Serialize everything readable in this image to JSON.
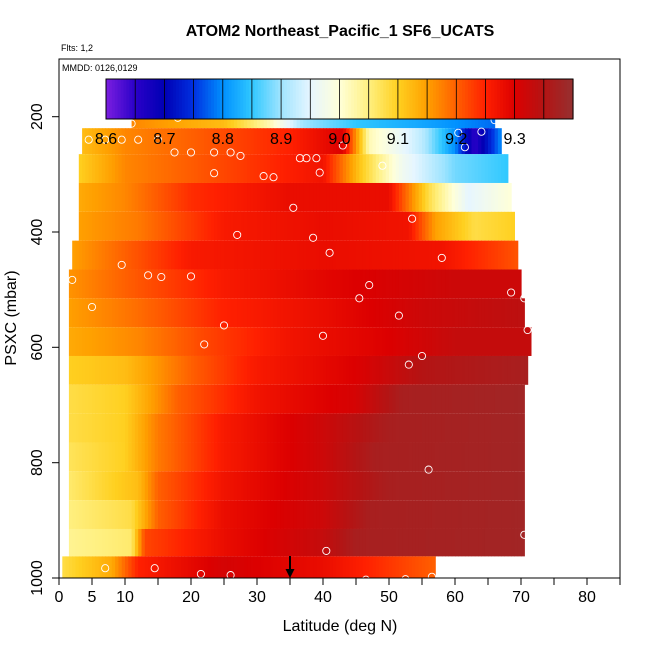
{
  "chart_data": {
    "type": "heatmap",
    "title": "ATOM2 Northeast_Pacific_1 SF6_UCATS",
    "flights_note": "Flts: 1,2",
    "dates_note": "MMDD: 0126,0129",
    "xlabel": "Latitude (deg N)",
    "ylabel": "PSXC (mbar)",
    "xlim": [
      0,
      85
    ],
    "ylim": [
      1000,
      100
    ],
    "x_ticks": [
      0,
      5,
      10,
      20,
      30,
      40,
      50,
      60,
      70,
      80
    ],
    "x_tick_labels": [
      "0",
      "5",
      "10",
      "20",
      "30",
      "40",
      "50",
      "60",
      "70",
      "80"
    ],
    "x_minor_ticks": [
      15,
      25,
      35,
      45,
      55,
      65,
      75,
      85
    ],
    "y_ticks": [
      200,
      400,
      600,
      800,
      1000
    ],
    "y_tick_labels": [
      "200",
      "400",
      "600",
      "800",
      "1000"
    ],
    "colorbar": {
      "range": [
        8.6,
        9.4
      ],
      "ticks": [
        8.6,
        8.7,
        8.8,
        8.9,
        9.0,
        9.1,
        9.2,
        9.3
      ],
      "tick_labels": [
        "8.6",
        "8.7",
        "8.8",
        "8.9",
        "9.0",
        "9.1",
        "9.2",
        "9.3"
      ],
      "colors": [
        "#7b1fe0",
        "#2a00c8",
        "#0000b4",
        "#0030e0",
        "#0090ff",
        "#30c8ff",
        "#a0e4ff",
        "#e6f6ff",
        "#ffffd8",
        "#fff080",
        "#ffd020",
        "#ffa000",
        "#ff6000",
        "#ff2000",
        "#dc0000",
        "#b41414",
        "#963030"
      ]
    },
    "layers": [
      {
        "p": 200,
        "lat_min": 11,
        "lat_max": 66,
        "values": [
          {
            "lat": 11,
            "v": 9.17
          },
          {
            "lat": 25,
            "v": 9.12
          },
          {
            "lat": 32,
            "v": 9.02
          },
          {
            "lat": 37,
            "v": 8.9
          },
          {
            "lat": 45,
            "v": 8.85
          },
          {
            "lat": 55,
            "v": 8.82
          },
          {
            "lat": 66,
            "v": 8.78
          }
        ]
      },
      {
        "p": 240,
        "lat_min": 3.5,
        "lat_max": 67,
        "values": [
          {
            "lat": 3.5,
            "v": 9.12
          },
          {
            "lat": 10,
            "v": 9.17
          },
          {
            "lat": 20,
            "v": 9.2
          },
          {
            "lat": 35,
            "v": 9.25
          },
          {
            "lat": 43,
            "v": 9.3
          },
          {
            "lat": 47,
            "v": 9.02
          },
          {
            "lat": 55,
            "v": 8.92
          },
          {
            "lat": 60,
            "v": 8.8
          },
          {
            "lat": 63,
            "v": 8.65
          },
          {
            "lat": 67,
            "v": 8.8
          }
        ]
      },
      {
        "p": 290,
        "lat_min": 3,
        "lat_max": 68,
        "values": [
          {
            "lat": 3,
            "v": 9.1
          },
          {
            "lat": 10,
            "v": 9.17
          },
          {
            "lat": 25,
            "v": 9.22
          },
          {
            "lat": 40,
            "v": 9.27
          },
          {
            "lat": 46,
            "v": 9.1
          },
          {
            "lat": 52,
            "v": 8.97
          },
          {
            "lat": 60,
            "v": 8.88
          },
          {
            "lat": 68,
            "v": 8.85
          }
        ]
      },
      {
        "p": 340,
        "lat_min": 3,
        "lat_max": 68.5,
        "values": [
          {
            "lat": 3,
            "v": 9.14
          },
          {
            "lat": 10,
            "v": 9.17
          },
          {
            "lat": 20,
            "v": 9.24
          },
          {
            "lat": 35,
            "v": 9.28
          },
          {
            "lat": 50,
            "v": 9.28
          },
          {
            "lat": 56,
            "v": 9.08
          },
          {
            "lat": 62,
            "v": 8.95
          },
          {
            "lat": 68.5,
            "v": 9.0
          }
        ]
      },
      {
        "p": 390,
        "lat_min": 3,
        "lat_max": 69,
        "values": [
          {
            "lat": 3,
            "v": 9.15
          },
          {
            "lat": 12,
            "v": 9.18
          },
          {
            "lat": 25,
            "v": 9.26
          },
          {
            "lat": 40,
            "v": 9.28
          },
          {
            "lat": 53,
            "v": 9.27
          },
          {
            "lat": 57,
            "v": 9.15
          },
          {
            "lat": 63,
            "v": 9.08
          },
          {
            "lat": 69,
            "v": 9.1
          }
        ]
      },
      {
        "p": 440,
        "lat_min": 2,
        "lat_max": 69.5,
        "values": [
          {
            "lat": 2,
            "v": 9.15
          },
          {
            "lat": 10,
            "v": 9.2
          },
          {
            "lat": 20,
            "v": 9.26
          },
          {
            "lat": 40,
            "v": 9.28
          },
          {
            "lat": 58,
            "v": 9.27
          },
          {
            "lat": 69.5,
            "v": 9.21
          }
        ]
      },
      {
        "p": 490,
        "lat_min": 1.5,
        "lat_max": 70,
        "values": [
          {
            "lat": 1.5,
            "v": 9.16
          },
          {
            "lat": 10,
            "v": 9.2
          },
          {
            "lat": 25,
            "v": 9.26
          },
          {
            "lat": 45,
            "v": 9.3
          },
          {
            "lat": 60,
            "v": 9.32
          },
          {
            "lat": 70,
            "v": 9.32
          }
        ]
      },
      {
        "p": 540,
        "lat_min": 1.5,
        "lat_max": 70.5,
        "values": [
          {
            "lat": 1.5,
            "v": 9.15
          },
          {
            "lat": 12,
            "v": 9.19
          },
          {
            "lat": 25,
            "v": 9.25
          },
          {
            "lat": 40,
            "v": 9.28
          },
          {
            "lat": 55,
            "v": 9.32
          },
          {
            "lat": 70.5,
            "v": 9.34
          }
        ]
      },
      {
        "p": 590,
        "lat_min": 1.5,
        "lat_max": 71.5,
        "values": [
          {
            "lat": 1.5,
            "v": 9.14
          },
          {
            "lat": 12,
            "v": 9.17
          },
          {
            "lat": 22,
            "v": 9.22
          },
          {
            "lat": 35,
            "v": 9.27
          },
          {
            "lat": 50,
            "v": 9.3
          },
          {
            "lat": 60,
            "v": 9.33
          },
          {
            "lat": 71.5,
            "v": 9.33
          }
        ]
      },
      {
        "p": 640,
        "lat_min": 1.5,
        "lat_max": 71,
        "values": [
          {
            "lat": 1.5,
            "v": 9.1
          },
          {
            "lat": 10,
            "v": 9.12
          },
          {
            "lat": 20,
            "v": 9.2
          },
          {
            "lat": 30,
            "v": 9.26
          },
          {
            "lat": 45,
            "v": 9.3
          },
          {
            "lat": 55,
            "v": 9.35
          },
          {
            "lat": 71,
            "v": 9.37
          }
        ]
      },
      {
        "p": 690,
        "lat_min": 1.5,
        "lat_max": 70.5,
        "values": [
          {
            "lat": 1.5,
            "v": 9.08
          },
          {
            "lat": 10,
            "v": 9.1
          },
          {
            "lat": 18,
            "v": 9.2
          },
          {
            "lat": 30,
            "v": 9.27
          },
          {
            "lat": 45,
            "v": 9.31
          },
          {
            "lat": 52,
            "v": 9.37
          },
          {
            "lat": 70.5,
            "v": 9.38
          }
        ]
      },
      {
        "p": 740,
        "lat_min": 1.5,
        "lat_max": 70.5,
        "values": [
          {
            "lat": 1.5,
            "v": 9.08
          },
          {
            "lat": 10,
            "v": 9.1
          },
          {
            "lat": 15,
            "v": 9.18
          },
          {
            "lat": 25,
            "v": 9.26
          },
          {
            "lat": 40,
            "v": 9.32
          },
          {
            "lat": 50,
            "v": 9.37
          },
          {
            "lat": 70.5,
            "v": 9.38
          }
        ]
      },
      {
        "p": 790,
        "lat_min": 1.5,
        "lat_max": 70.5,
        "values": [
          {
            "lat": 1.5,
            "v": 9.07
          },
          {
            "lat": 10,
            "v": 9.1
          },
          {
            "lat": 15,
            "v": 9.18
          },
          {
            "lat": 25,
            "v": 9.26
          },
          {
            "lat": 40,
            "v": 9.32
          },
          {
            "lat": 48,
            "v": 9.37
          },
          {
            "lat": 70.5,
            "v": 9.38
          }
        ]
      },
      {
        "p": 840,
        "lat_min": 1.5,
        "lat_max": 70.5,
        "values": [
          {
            "lat": 1.5,
            "v": 9.06
          },
          {
            "lat": 12,
            "v": 9.12
          },
          {
            "lat": 15,
            "v": 9.2
          },
          {
            "lat": 25,
            "v": 9.27
          },
          {
            "lat": 40,
            "v": 9.32
          },
          {
            "lat": 50,
            "v": 9.37
          },
          {
            "lat": 70.5,
            "v": 9.38
          }
        ]
      },
      {
        "p": 890,
        "lat_min": 1.5,
        "lat_max": 70.5,
        "values": [
          {
            "lat": 1.5,
            "v": 9.05
          },
          {
            "lat": 11,
            "v": 9.08
          },
          {
            "lat": 15,
            "v": 9.2
          },
          {
            "lat": 25,
            "v": 9.28
          },
          {
            "lat": 40,
            "v": 9.32
          },
          {
            "lat": 47,
            "v": 9.37
          },
          {
            "lat": 70.5,
            "v": 9.38
          }
        ]
      },
      {
        "p": 940,
        "lat_min": 1.5,
        "lat_max": 70.5,
        "values": [
          {
            "lat": 1.5,
            "v": 9.04
          },
          {
            "lat": 11,
            "v": 9.06
          },
          {
            "lat": 13,
            "v": 9.22
          },
          {
            "lat": 25,
            "v": 9.28
          },
          {
            "lat": 40,
            "v": 9.33
          },
          {
            "lat": 45,
            "v": 9.37
          },
          {
            "lat": 70.5,
            "v": 9.38
          }
        ]
      },
      {
        "p": 985,
        "lat_min": 0.5,
        "lat_max": 57,
        "values": [
          {
            "lat": 0.5,
            "v": 9.08
          },
          {
            "lat": 8,
            "v": 9.14
          },
          {
            "lat": 12,
            "v": 9.25
          },
          {
            "lat": 25,
            "v": 9.31
          },
          {
            "lat": 40,
            "v": 9.28
          },
          {
            "lat": 57,
            "v": 9.2
          }
        ]
      }
    ],
    "observations": [
      {
        "lat": 11,
        "p": 212
      },
      {
        "lat": 18,
        "p": 202
      },
      {
        "lat": 30.5,
        "p": 183
      },
      {
        "lat": 66,
        "p": 206
      },
      {
        "lat": 60.5,
        "p": 228
      },
      {
        "lat": 64,
        "p": 226
      },
      {
        "lat": 61.5,
        "p": 253
      },
      {
        "lat": 4.5,
        "p": 240
      },
      {
        "lat": 7,
        "p": 240
      },
      {
        "lat": 9.5,
        "p": 240
      },
      {
        "lat": 12,
        "p": 240
      },
      {
        "lat": 15,
        "p": 240
      },
      {
        "lat": 17.5,
        "p": 262
      },
      {
        "lat": 20,
        "p": 262
      },
      {
        "lat": 23.5,
        "p": 262
      },
      {
        "lat": 26,
        "p": 262
      },
      {
        "lat": 27.5,
        "p": 268
      },
      {
        "lat": 36.5,
        "p": 272
      },
      {
        "lat": 37.5,
        "p": 272
      },
      {
        "lat": 39,
        "p": 272
      },
      {
        "lat": 43,
        "p": 250
      },
      {
        "lat": 49,
        "p": 285
      },
      {
        "lat": 23.5,
        "p": 298
      },
      {
        "lat": 31,
        "p": 303
      },
      {
        "lat": 32.5,
        "p": 305
      },
      {
        "lat": 39.5,
        "p": 297
      },
      {
        "lat": 35.5,
        "p": 358
      },
      {
        "lat": 53.5,
        "p": 377
      },
      {
        "lat": 27,
        "p": 405
      },
      {
        "lat": 38.5,
        "p": 410
      },
      {
        "lat": 41,
        "p": 436
      },
      {
        "lat": 58,
        "p": 445
      },
      {
        "lat": 9.5,
        "p": 457
      },
      {
        "lat": 2,
        "p": 483
      },
      {
        "lat": 13.5,
        "p": 475
      },
      {
        "lat": 15.5,
        "p": 478
      },
      {
        "lat": 20,
        "p": 477
      },
      {
        "lat": 47,
        "p": 492
      },
      {
        "lat": 45.5,
        "p": 515
      },
      {
        "lat": 68.5,
        "p": 505
      },
      {
        "lat": 70.5,
        "p": 515
      },
      {
        "lat": 5,
        "p": 530
      },
      {
        "lat": 51.5,
        "p": 545
      },
      {
        "lat": 25,
        "p": 562
      },
      {
        "lat": 40,
        "p": 580
      },
      {
        "lat": 71,
        "p": 570
      },
      {
        "lat": 22,
        "p": 595
      },
      {
        "lat": 55,
        "p": 615
      },
      {
        "lat": 53,
        "p": 630
      },
      {
        "lat": 56,
        "p": 812
      },
      {
        "lat": 70.5,
        "p": 925
      },
      {
        "lat": 40.5,
        "p": 953
      },
      {
        "lat": 7,
        "p": 983
      },
      {
        "lat": 14.5,
        "p": 983
      },
      {
        "lat": 21.5,
        "p": 993
      },
      {
        "lat": 26,
        "p": 995
      },
      {
        "lat": 46.5,
        "p": 1003
      },
      {
        "lat": 52.5,
        "p": 1002
      },
      {
        "lat": 56.5,
        "p": 998
      }
    ],
    "marker_lat": 35
  }
}
